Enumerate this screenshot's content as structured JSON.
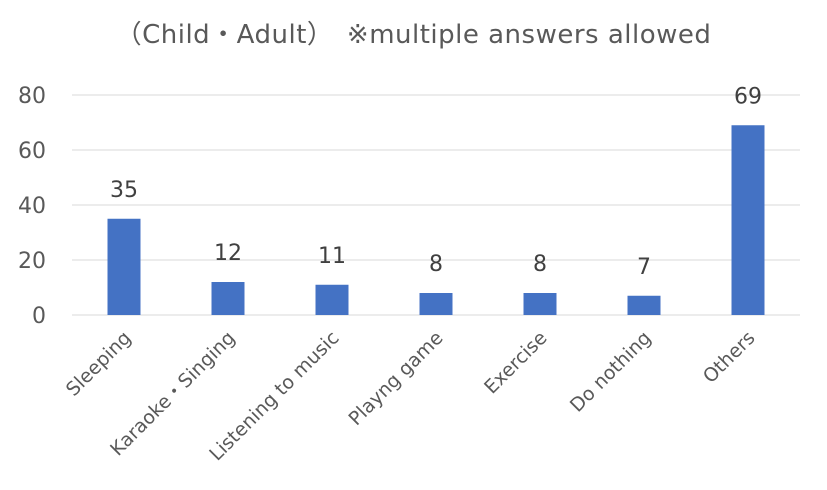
{
  "chart_data": {
    "type": "bar",
    "title": "（Child・Adult）　※multiple answers allowed",
    "categories": [
      "Sleeping",
      "Karaoke・Singing",
      "Listening to music",
      "Playng game",
      "Exercise",
      "Do nothing",
      "Others"
    ],
    "values": [
      35,
      12,
      11,
      8,
      8,
      7,
      69
    ],
    "ylim": [
      0,
      80
    ],
    "yticks": [
      0,
      20,
      40,
      60,
      80
    ],
    "xlabel": "",
    "ylabel": "",
    "grid": true,
    "legend": "none",
    "bar_color": "#4472c4",
    "grid_color": "#d9d9d9"
  }
}
